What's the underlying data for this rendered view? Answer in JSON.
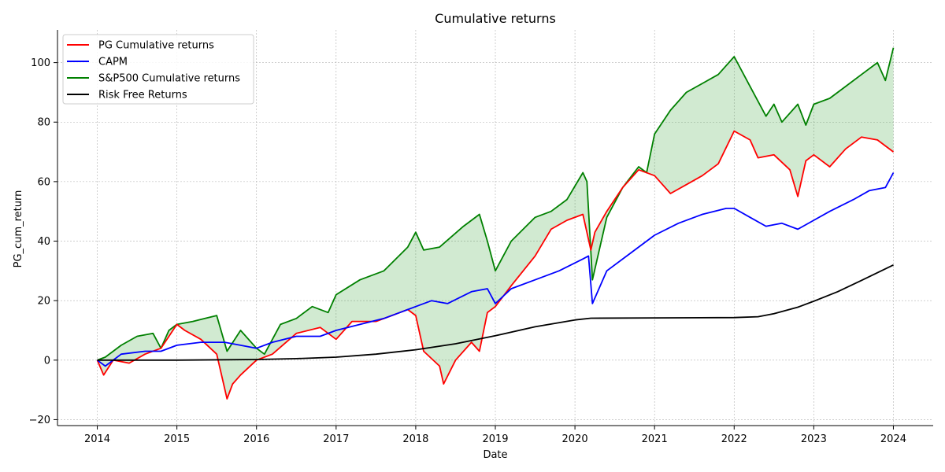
{
  "chart_data": {
    "type": "line",
    "title": "Cumulative returns",
    "xlabel": "Date",
    "ylabel": "PG_cum_return",
    "xlim": [
      2013.5,
      2024.5
    ],
    "ylim": [
      -22,
      111
    ],
    "x_ticks": [
      2014,
      2015,
      2016,
      2017,
      2018,
      2019,
      2020,
      2021,
      2022,
      2023,
      2024
    ],
    "x_tick_labels": [
      "2014",
      "2015",
      "2016",
      "2017",
      "2018",
      "2019",
      "2020",
      "2021",
      "2022",
      "2023",
      "2024"
    ],
    "y_ticks": [
      -20,
      0,
      20,
      40,
      60,
      80,
      100
    ],
    "y_tick_labels": [
      "−20",
      "0",
      "20",
      "40",
      "60",
      "80",
      "100"
    ],
    "grid": true,
    "legend_position": "top-left",
    "fill_between": {
      "series": [
        "PG Cumulative returns",
        "S&P500 Cumulative returns"
      ],
      "color": "#2ca02c",
      "opacity": 0.22
    },
    "series": [
      {
        "name": "PG Cumulative returns",
        "color": "#ff0000",
        "x": [
          2014.0,
          2014.08,
          2014.2,
          2014.4,
          2014.6,
          2014.8,
          2015.0,
          2015.1,
          2015.3,
          2015.5,
          2015.63,
          2015.7,
          2015.8,
          2016.0,
          2016.2,
          2016.5,
          2016.8,
          2017.0,
          2017.2,
          2017.5,
          2017.7,
          2017.9,
          2018.0,
          2018.1,
          2018.3,
          2018.35,
          2018.5,
          2018.7,
          2018.8,
          2018.9,
          2019.0,
          2019.2,
          2019.5,
          2019.7,
          2019.9,
          2020.1,
          2020.2,
          2020.25,
          2020.4,
          2020.6,
          2020.8,
          2021.0,
          2021.2,
          2021.4,
          2021.6,
          2021.8,
          2022.0,
          2022.2,
          2022.3,
          2022.5,
          2022.7,
          2022.8,
          2022.9,
          2023.0,
          2023.2,
          2023.4,
          2023.6,
          2023.8,
          2024.0
        ],
        "y": [
          0,
          -5,
          0,
          -1,
          2,
          4,
          12,
          10,
          7,
          2,
          -13,
          -8,
          -5,
          0,
          2,
          9,
          11,
          7,
          13,
          13,
          15,
          17,
          15,
          3,
          -2,
          -8,
          0,
          6,
          3,
          16,
          18,
          25,
          35,
          44,
          47,
          49,
          37,
          43,
          50,
          58,
          64,
          62,
          56,
          59,
          62,
          66,
          77,
          74,
          68,
          69,
          64,
          55,
          67,
          69,
          65,
          71,
          75,
          74,
          70
        ]
      },
      {
        "name": "CAPM",
        "color": "#0000ff",
        "x": [
          2014.0,
          2014.1,
          2014.3,
          2014.6,
          2014.8,
          2015.0,
          2015.3,
          2015.6,
          2015.8,
          2016.0,
          2016.2,
          2016.5,
          2016.8,
          2017.0,
          2017.3,
          2017.6,
          2017.9,
          2018.0,
          2018.2,
          2018.4,
          2018.7,
          2018.9,
          2019.0,
          2019.2,
          2019.5,
          2019.8,
          2020.1,
          2020.17,
          2020.22,
          2020.4,
          2020.7,
          2021.0,
          2021.3,
          2021.6,
          2021.9,
          2022.0,
          2022.2,
          2022.4,
          2022.6,
          2022.8,
          2023.0,
          2023.2,
          2023.5,
          2023.7,
          2023.9,
          2024.0
        ],
        "y": [
          0,
          -2,
          2,
          3,
          3,
          5,
          6,
          6,
          5,
          4,
          6,
          8,
          8,
          10,
          12,
          14,
          17,
          18,
          20,
          19,
          23,
          24,
          19,
          24,
          27,
          30,
          34,
          35,
          19,
          30,
          36,
          42,
          46,
          49,
          51,
          51,
          48,
          45,
          46,
          44,
          47,
          50,
          54,
          57,
          58,
          63
        ]
      },
      {
        "name": "S&P500 Cumulative returns",
        "color": "#008000",
        "x": [
          2014.0,
          2014.1,
          2014.3,
          2014.5,
          2014.7,
          2014.8,
          2014.9,
          2015.0,
          2015.2,
          2015.5,
          2015.63,
          2015.8,
          2016.0,
          2016.1,
          2016.3,
          2016.5,
          2016.7,
          2016.9,
          2017.0,
          2017.3,
          2017.6,
          2017.9,
          2018.0,
          2018.1,
          2018.3,
          2018.6,
          2018.8,
          2018.9,
          2019.0,
          2019.2,
          2019.5,
          2019.7,
          2019.9,
          2020.1,
          2020.15,
          2020.22,
          2020.4,
          2020.6,
          2020.8,
          2020.9,
          2021.0,
          2021.2,
          2021.4,
          2021.6,
          2021.8,
          2022.0,
          2022.2,
          2022.4,
          2022.5,
          2022.6,
          2022.8,
          2022.9,
          2023.0,
          2023.2,
          2023.4,
          2023.6,
          2023.8,
          2023.9,
          2024.0
        ],
        "y": [
          0,
          1,
          5,
          8,
          9,
          4,
          10,
          12,
          13,
          15,
          3,
          10,
          4,
          2,
          12,
          14,
          18,
          16,
          22,
          27,
          30,
          38,
          43,
          37,
          38,
          45,
          49,
          40,
          30,
          40,
          48,
          50,
          54,
          63,
          60,
          27,
          48,
          58,
          65,
          63,
          76,
          84,
          90,
          93,
          96,
          102,
          92,
          82,
          86,
          80,
          86,
          79,
          86,
          88,
          92,
          96,
          100,
          94,
          105
        ]
      },
      {
        "name": "Risk Free Returns",
        "color": "#000000",
        "x": [
          2014.0,
          2015.0,
          2016.0,
          2016.5,
          2017.0,
          2017.5,
          2018.0,
          2018.5,
          2019.0,
          2019.5,
          2020.0,
          2020.2,
          2021.0,
          2022.0,
          2022.3,
          2022.5,
          2022.8,
          2023.0,
          2023.3,
          2023.6,
          2024.0
        ],
        "y": [
          0,
          0,
          0.2,
          0.5,
          1.0,
          2.0,
          3.5,
          5.5,
          8.2,
          11.2,
          13.5,
          14.1,
          14.2,
          14.3,
          14.6,
          15.6,
          17.8,
          19.8,
          23.0,
          26.8,
          32.0
        ]
      }
    ]
  }
}
